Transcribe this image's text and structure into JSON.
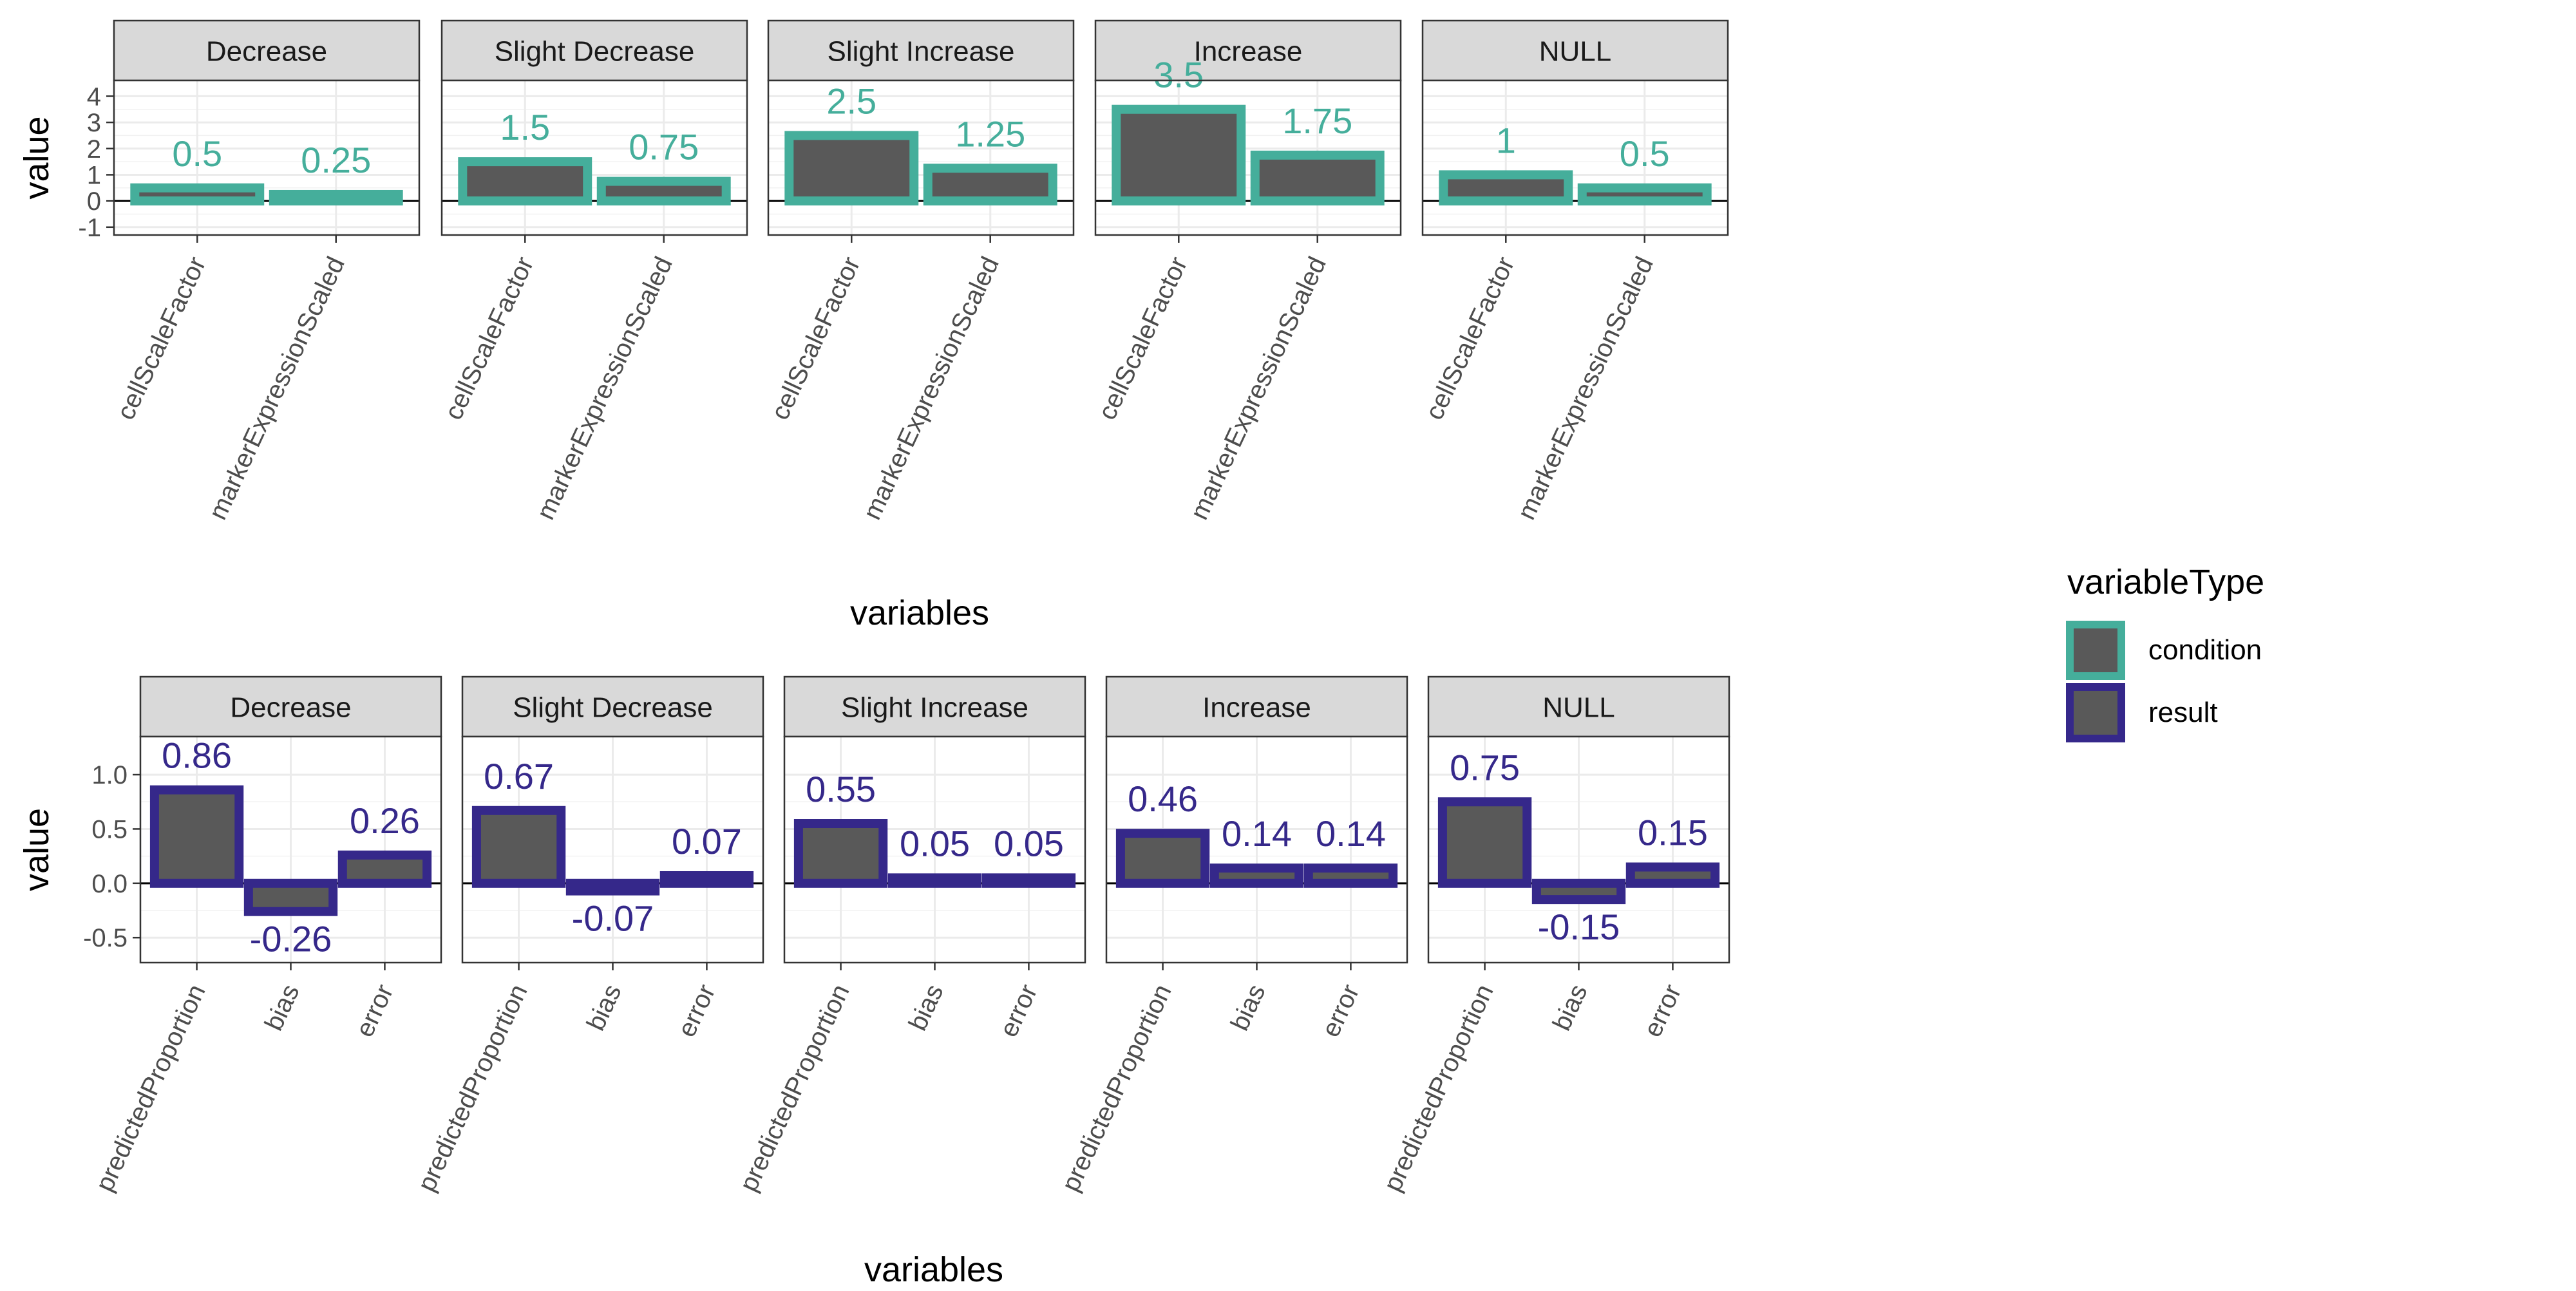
{
  "chart_data": [
    {
      "type": "bar",
      "ylabel": "value",
      "xlabel": "variables",
      "ylim": [
        -1.3,
        4.6
      ],
      "yticks": [
        -1,
        0,
        1,
        2,
        3,
        4
      ],
      "categories": [
        "cellScaleFactor",
        "markerExpressionScaled"
      ],
      "variable_type": "condition",
      "panels": [
        {
          "name": "Decrease",
          "values": [
            0.5,
            0.25
          ],
          "labels": [
            "0.5",
            "0.25"
          ]
        },
        {
          "name": "Slight Decrease",
          "values": [
            1.5,
            0.75
          ],
          "labels": [
            "1.5",
            "0.75"
          ]
        },
        {
          "name": "Slight Increase",
          "values": [
            2.5,
            1.25
          ],
          "labels": [
            "2.5",
            "1.25"
          ]
        },
        {
          "name": "Increase",
          "values": [
            3.5,
            1.75
          ],
          "labels": [
            "3.5",
            "1.75"
          ]
        },
        {
          "name": "NULL",
          "values": [
            1,
            0.5
          ],
          "labels": [
            "1",
            "0.5"
          ]
        }
      ]
    },
    {
      "type": "bar",
      "ylabel": "value",
      "xlabel": "variables",
      "ylim": [
        -0.73,
        1.35
      ],
      "yticks": [
        -0.5,
        0.0,
        0.5,
        1.0
      ],
      "ytick_labels": [
        "-0.5",
        "0.0",
        "0.5",
        "1.0"
      ],
      "categories": [
        "predictedProportion",
        "bias",
        "error"
      ],
      "variable_type": "result",
      "panels": [
        {
          "name": "Decrease",
          "values": [
            0.86,
            -0.26,
            0.26
          ],
          "labels": [
            "0.86",
            "-0.26",
            "0.26"
          ]
        },
        {
          "name": "Slight Decrease",
          "values": [
            0.67,
            -0.07,
            0.07
          ],
          "labels": [
            "0.67",
            "-0.07",
            "0.07"
          ]
        },
        {
          "name": "Slight Increase",
          "values": [
            0.55,
            0.05,
            0.05
          ],
          "labels": [
            "0.55",
            "0.05",
            "0.05"
          ]
        },
        {
          "name": "Increase",
          "values": [
            0.46,
            0.14,
            0.14
          ],
          "labels": [
            "0.46",
            "0.14",
            "0.14"
          ]
        },
        {
          "name": "NULL",
          "values": [
            0.75,
            -0.15,
            0.15
          ],
          "labels": [
            "0.75",
            "-0.15",
            "0.15"
          ]
        }
      ]
    }
  ],
  "legend": {
    "title": "variableType",
    "position": "right",
    "items": [
      {
        "label": "condition",
        "color": "#45AE9B"
      },
      {
        "label": "result",
        "color": "#35288A"
      }
    ]
  },
  "colors": {
    "bar_fill": "#595959",
    "condition_outline": "#45AE9B",
    "result_outline": "#35288A",
    "strip_fill": "#D9D9D9",
    "grid": "#EBEBEB"
  }
}
